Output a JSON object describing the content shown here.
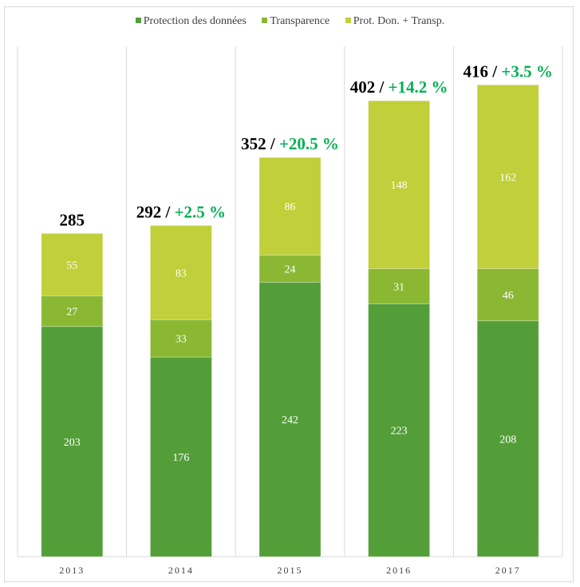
{
  "chart_data": {
    "type": "bar",
    "stacked": true,
    "categories": [
      "2013",
      "2014",
      "2015",
      "2016",
      "2017"
    ],
    "series": [
      {
        "name": "Protection des données",
        "color": "#549e39",
        "values": [
          203,
          176,
          242,
          223,
          208
        ]
      },
      {
        "name": "Transparence",
        "color": "#8ab833",
        "values": [
          27,
          33,
          24,
          31,
          46
        ]
      },
      {
        "name": "Prot. Don. + Transp.",
        "color": "#c0cf3a",
        "values": [
          55,
          83,
          86,
          148,
          162
        ]
      }
    ],
    "totals": [
      "285",
      "292",
      "352",
      "402",
      "416"
    ],
    "growth": [
      "",
      "+2.5 %",
      "+20.5 %",
      "+14.2 %",
      "+3.5 %"
    ],
    "growth_color": "#00b050",
    "ylim": [
      0,
      450
    ],
    "grid": "vertical category separators",
    "legend_position": "top"
  }
}
